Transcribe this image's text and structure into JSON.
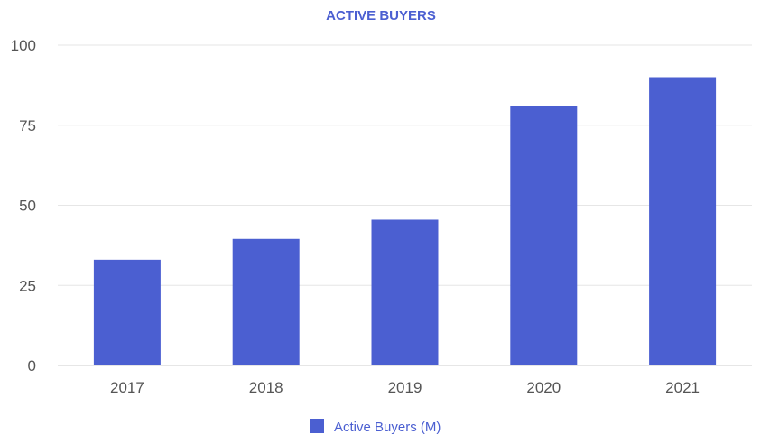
{
  "chart_data": {
    "type": "bar",
    "title": "ACTIVE BUYERS",
    "xlabel": "",
    "ylabel": "",
    "categories": [
      "2017",
      "2018",
      "2019",
      "2020",
      "2021"
    ],
    "series": [
      {
        "name": "Active Buyers (M)",
        "values": [
          33,
          39.5,
          45.5,
          81,
          90
        ]
      }
    ],
    "ylim": [
      0,
      100
    ],
    "yticks": [
      "0",
      "25",
      "50",
      "75",
      "100"
    ],
    "grid": true,
    "legend_position": "bottom",
    "colors": {
      "bar": "#4b5fd1",
      "title": "#4b5fd1",
      "grid": "#e6e6e6",
      "axis": "#cccccc",
      "tick_text": "#555555"
    }
  }
}
